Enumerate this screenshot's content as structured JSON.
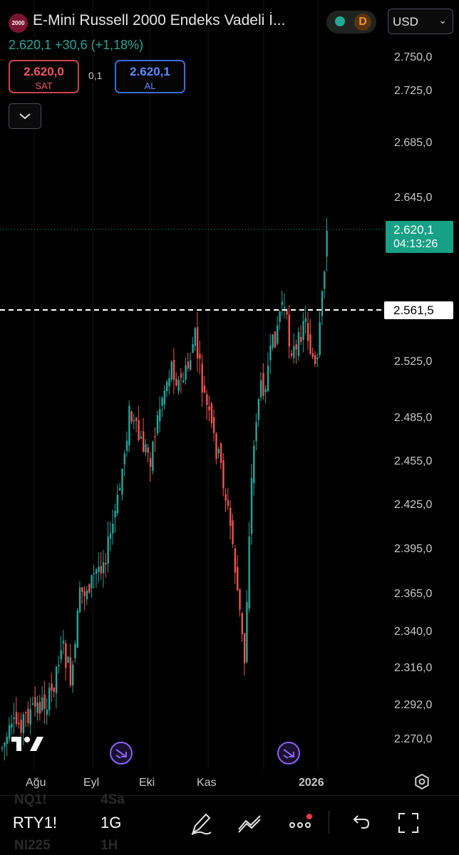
{
  "header": {
    "logo_text": "2000",
    "title": "E-Mini Russell 2000 Endeks Vadeli İ...",
    "delay_badge": "D",
    "currency": "USD"
  },
  "quote": {
    "last": "2.620,1",
    "change": "+30,6",
    "change_pct": "(+1,18%)"
  },
  "trade": {
    "sell_price": "2.620,0",
    "sell_label": "SAT",
    "spread": "0,1",
    "buy_price": "2.620,1",
    "buy_label": "AL"
  },
  "chart_data": {
    "type": "candlestick",
    "price_ticks": [
      "2.750,0",
      "2.725,0",
      "2.685,0",
      "2.645,0",
      "2.525,0",
      "2.485,0",
      "2.455,0",
      "2.425,0",
      "2.395,0",
      "2.365,0",
      "2.340,0",
      "2.316,0",
      "2.292,0",
      "2.270,0"
    ],
    "x_ticks": [
      "Ağu",
      "Eyl",
      "Eki",
      "Kas",
      "2026"
    ],
    "last_price_label": "2.620,1",
    "countdown": "04:13:26",
    "line_price_label": "2.561,5",
    "colors": {
      "up": "#26a69a",
      "down": "#ef5350",
      "last": "#16a085"
    }
  },
  "bottom": {
    "bg_rows": [
      {
        "sym": "NQ1!",
        "int": "4Sa"
      },
      {
        "sym": "NI225",
        "int": "1H"
      }
    ],
    "symbol": "RTY1!",
    "interval": "1G"
  },
  "icons": [
    "settings-gear-icon",
    "pen-icon",
    "trend-lines-icon",
    "more-icon",
    "undo-icon",
    "fullscreen-icon",
    "tradingview-logo-icon",
    "jump-arrow-icon"
  ]
}
